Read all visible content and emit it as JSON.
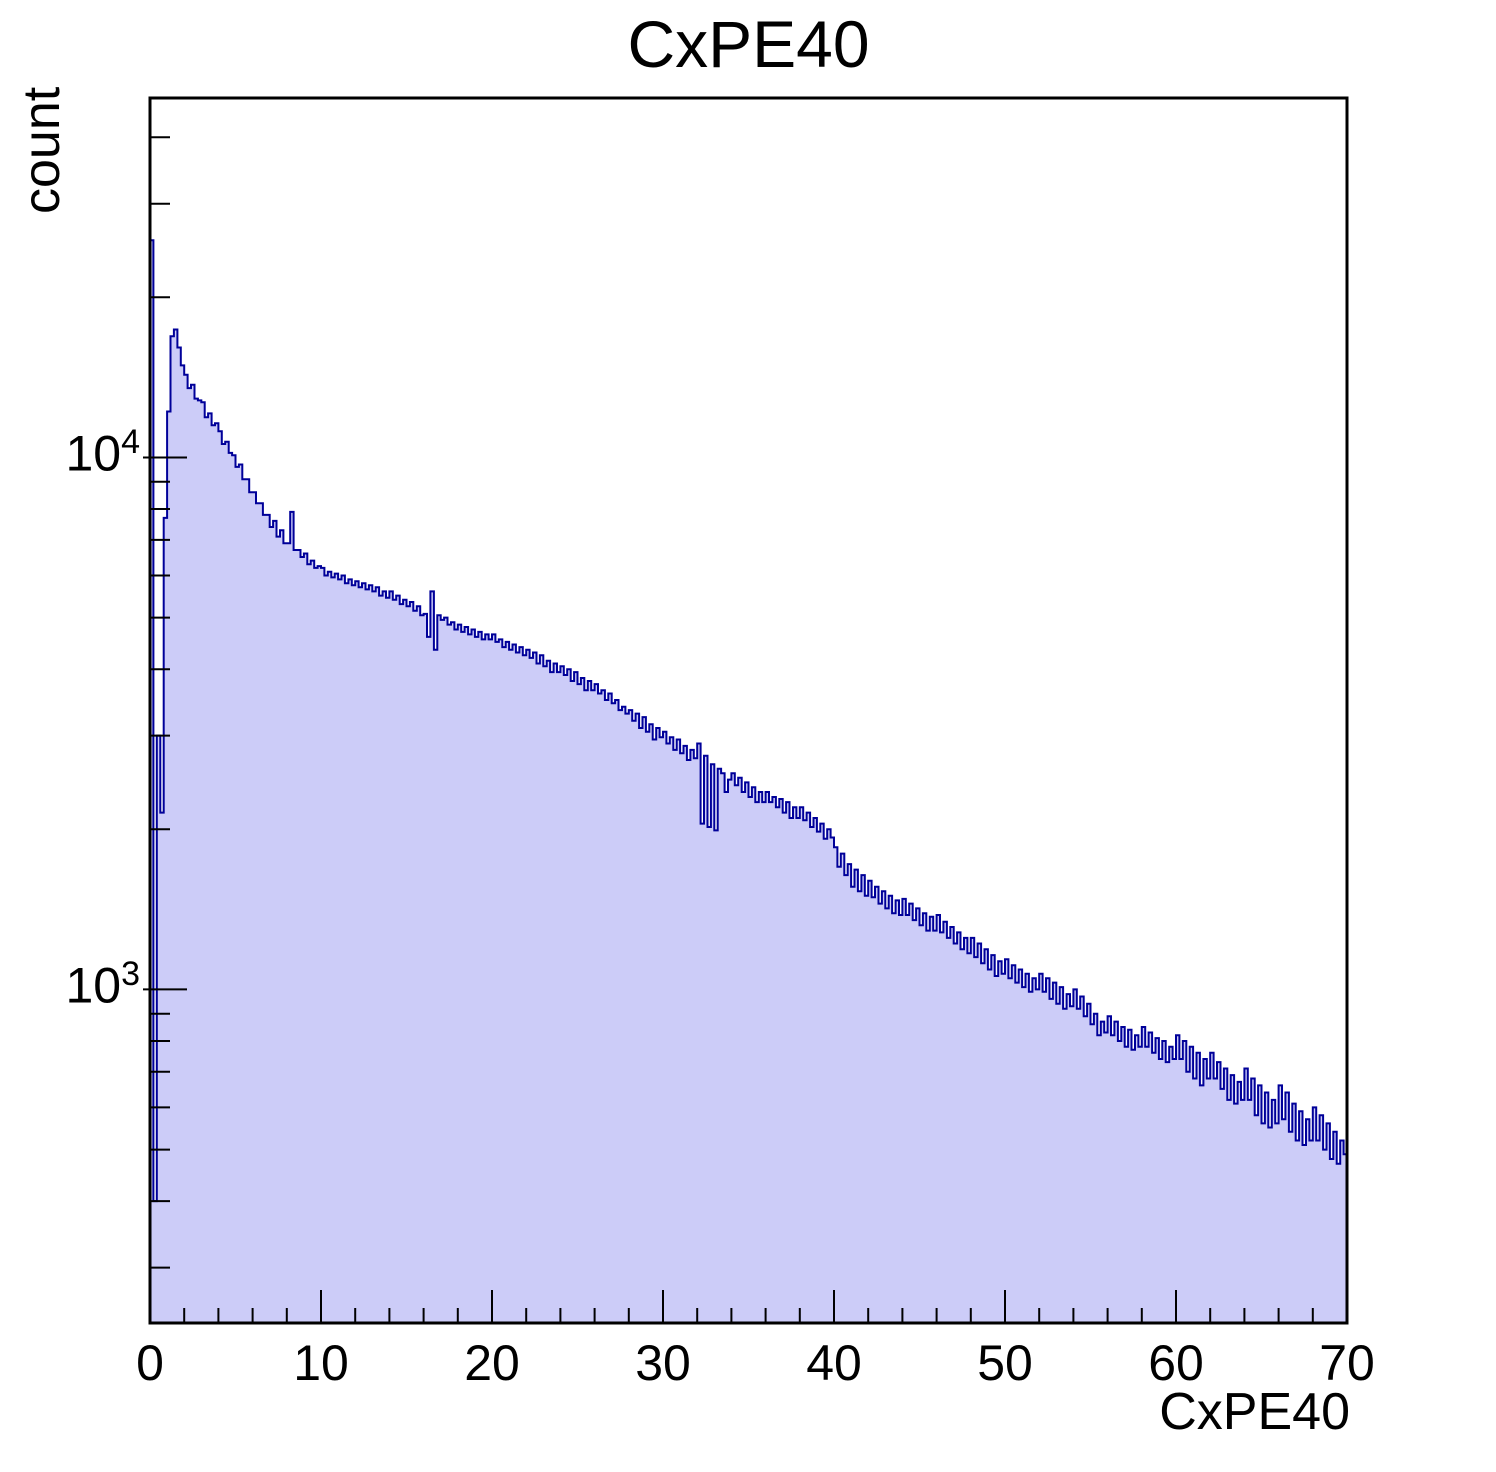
{
  "chart_data": {
    "type": "bar",
    "style": "filled-step-histogram",
    "title": "CxPE40",
    "xlabel": "CxPE40",
    "ylabel": "count",
    "x_min": 0,
    "x_max": 70,
    "bin_width": 0.2,
    "y_scale": "log",
    "y_min": 236,
    "y_max": 47400,
    "x_major_ticks": [
      0,
      10,
      20,
      30,
      40,
      50,
      60,
      70
    ],
    "x_minor_step": 2,
    "y_major_ticks": [
      {
        "value": 1000,
        "base": "10",
        "exp": "3"
      },
      {
        "value": 10000,
        "base": "10",
        "exp": "4"
      }
    ],
    "grid": false,
    "legend": false,
    "colors": {
      "fill": "#ccccf8",
      "line": "#000099",
      "frame": "#000000",
      "text": "#000000"
    },
    "values": [
      25600,
      400,
      3000,
      2150,
      7700,
      12200,
      16900,
      17400,
      16100,
      14900,
      14300,
      13500,
      13700,
      12900,
      12800,
      12700,
      11900,
      12100,
      11500,
      11600,
      11200,
      10600,
      10700,
      10200,
      10100,
      9600,
      9700,
      9100,
      9100,
      8600,
      8600,
      8200,
      8200,
      7800,
      7800,
      7400,
      7600,
      7100,
      7300,
      6900,
      6900,
      7900,
      6700,
      6700,
      6500,
      6600,
      6300,
      6400,
      6200,
      6250,
      6200,
      6000,
      6100,
      5950,
      6050,
      5900,
      6000,
      5800,
      5900,
      5750,
      5850,
      5700,
      5800,
      5650,
      5750,
      5600,
      5700,
      5500,
      5600,
      5450,
      5600,
      5400,
      5500,
      5300,
      5400,
      5250,
      5350,
      5150,
      5250,
      5050,
      5080,
      4600,
      5600,
      4350,
      5050,
      4950,
      5000,
      4850,
      4900,
      4750,
      4850,
      4700,
      4800,
      4650,
      4750,
      4600,
      4700,
      4550,
      4650,
      4550,
      4650,
      4500,
      4550,
      4400,
      4500,
      4350,
      4450,
      4300,
      4400,
      4250,
      4350,
      4200,
      4300,
      4100,
      4250,
      4050,
      4150,
      3950,
      4100,
      3950,
      4050,
      3900,
      4000,
      3800,
      3950,
      3750,
      3850,
      3650,
      3800,
      3650,
      3750,
      3600,
      3650,
      3500,
      3600,
      3450,
      3500,
      3350,
      3400,
      3300,
      3350,
      3200,
      3300,
      3100,
      3250,
      3050,
      3150,
      2950,
      3100,
      2980,
      3050,
      2900,
      2980,
      2820,
      2950,
      2780,
      2870,
      2700,
      2820,
      2720,
      2900,
      2050,
      2750,
      2020,
      2650,
      1990,
      2600,
      2550,
      2350,
      2480,
      2550,
      2420,
      2500,
      2350,
      2450,
      2300,
      2400,
      2250,
      2350,
      2250,
      2350,
      2250,
      2300,
      2200,
      2280,
      2150,
      2250,
      2100,
      2200,
      2100,
      2200,
      2080,
      2150,
      2020,
      2100,
      1980,
      2050,
      1920,
      2000,
      1930,
      1850,
      1700,
      1800,
      1640,
      1720,
      1560,
      1680,
      1530,
      1640,
      1500,
      1600,
      1490,
      1560,
      1450,
      1530,
      1420,
      1500,
      1390,
      1470,
      1380,
      1480,
      1380,
      1450,
      1350,
      1420,
      1320,
      1390,
      1290,
      1370,
      1290,
      1380,
      1280,
      1340,
      1250,
      1310,
      1220,
      1280,
      1190,
      1250,
      1170,
      1250,
      1150,
      1220,
      1120,
      1190,
      1090,
      1160,
      1060,
      1130,
      1070,
      1140,
      1050,
      1110,
      1030,
      1090,
      1010,
      1070,
      990,
      1050,
      1000,
      1070,
      990,
      1050,
      960,
      1030,
      940,
      1010,
      920,
      980,
      930,
      1000,
      920,
      970,
      890,
      940,
      860,
      900,
      820,
      870,
      830,
      890,
      820,
      870,
      800,
      850,
      780,
      840,
      770,
      820,
      780,
      850,
      780,
      830,
      760,
      810,
      740,
      800,
      730,
      780,
      740,
      820,
      740,
      800,
      700,
      780,
      680,
      760,
      660,
      740,
      680,
      760,
      680,
      730,
      650,
      710,
      620,
      690,
      610,
      670,
      620,
      710,
      620,
      680,
      580,
      660,
      560,
      640,
      550,
      620,
      560,
      660,
      570,
      640,
      540,
      610,
      520,
      590,
      510,
      570,
      520,
      600,
      520,
      580,
      500,
      560,
      480,
      540,
      470,
      520,
      490
    ]
  }
}
